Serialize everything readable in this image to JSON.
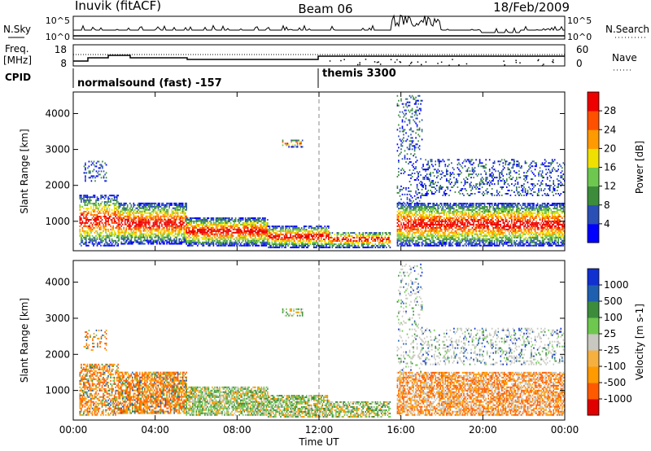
{
  "header": {
    "station": "Inuvik (fitACF)",
    "beam": "Beam 06",
    "date": "18/Feb/2009"
  },
  "noise_panel": {
    "left_label": "N.Sky",
    "right_label": "N.Search",
    "left_ticks": [
      "10^5",
      "10^0"
    ],
    "right_ticks": [
      "10^5",
      "10^0"
    ]
  },
  "freq_panel": {
    "left_label_1": "Freq.",
    "left_label_2": "[MHz]",
    "left_ticks": [
      "18",
      "8"
    ],
    "right_label": "Nave",
    "right_ticks": [
      "60",
      "0"
    ]
  },
  "cpid_panel": {
    "label": "CPID",
    "modes": [
      {
        "name": "normalsound (fast) -157",
        "start_hour": 0
      },
      {
        "name": "themis 3300",
        "start_hour": 12
      }
    ]
  },
  "chart_data": [
    {
      "type": "heatmap",
      "title": "Power",
      "xlabel": "",
      "ylabel": "Slant Range [km]",
      "x_ticks": [
        "00:00",
        "04:00",
        "08:00",
        "12:00",
        "16:00",
        "20:00",
        "00:00"
      ],
      "xlim_hours": [
        0,
        24
      ],
      "ylim": [
        180,
        4600
      ],
      "y_ticks": [
        1000,
        2000,
        3000,
        4000
      ],
      "colorbar_label": "Power [dB]",
      "colorbar_ticks": [
        "28",
        "24",
        "20",
        "16",
        "12",
        "8",
        "4"
      ],
      "colorbar_colors": [
        "#0000ff",
        "#2a4fb5",
        "#3c8c3c",
        "#6ec84f",
        "#f0e000",
        "#ff9a00",
        "#ff5000",
        "#ee0000"
      ]
    },
    {
      "type": "heatmap",
      "title": "Velocity",
      "xlabel": "Time UT",
      "ylabel": "Slant Range [km]",
      "x_ticks": [
        "00:00",
        "04:00",
        "08:00",
        "12:00",
        "16:00",
        "20:00",
        "00:00"
      ],
      "xlim_hours": [
        0,
        24
      ],
      "ylim": [
        180,
        4600
      ],
      "y_ticks": [
        1000,
        2000,
        3000,
        4000
      ],
      "colorbar_label": "Velocity [m s-1]",
      "colorbar_ticks": [
        "1000",
        "500",
        "100",
        "25",
        "-25",
        "-100",
        "-500",
        "-1000"
      ],
      "colorbar_colors": [
        "#e00000",
        "#ff5a00",
        "#ff9a00",
        "#f5b040",
        "#c8c8c0",
        "#6ec84f",
        "#3c8c3c",
        "#1f5fb0",
        "#1030d0"
      ]
    }
  ]
}
